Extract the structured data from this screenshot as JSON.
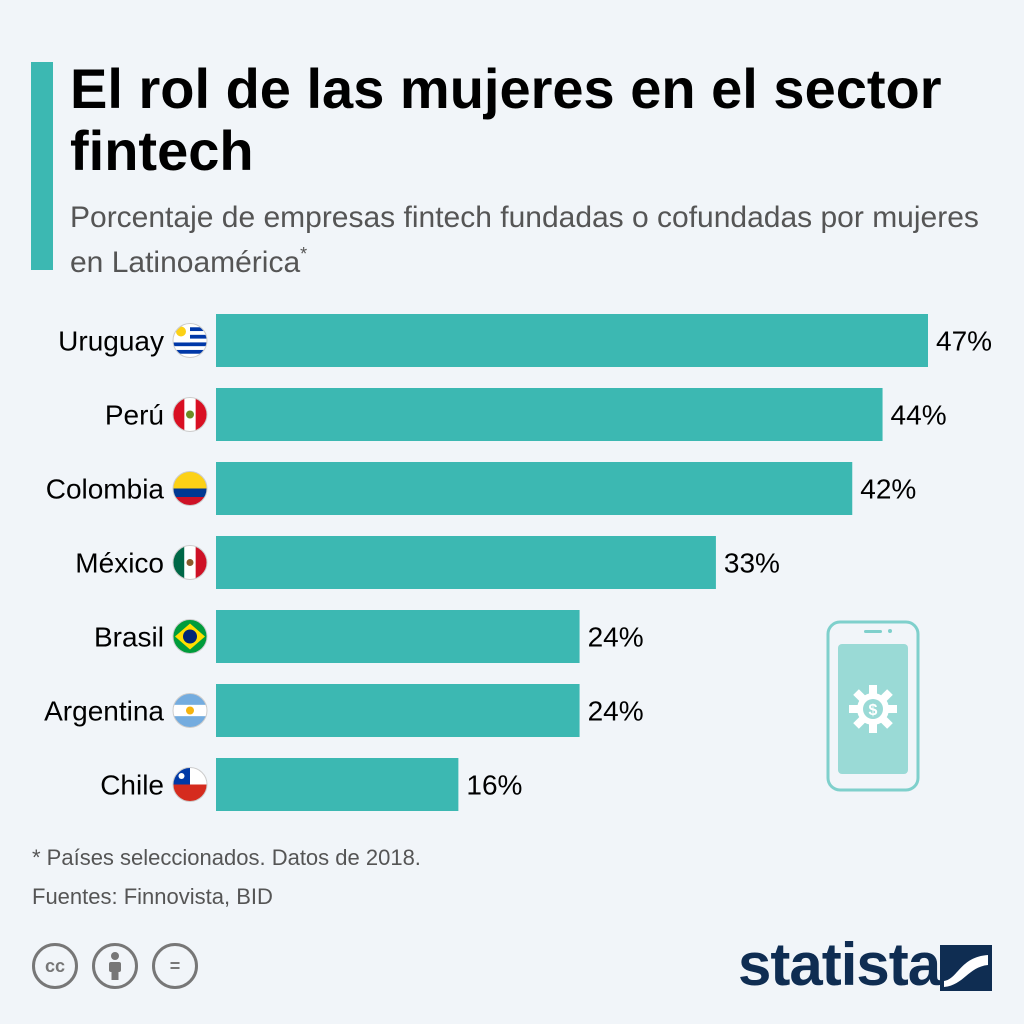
{
  "header": {
    "title": "El rol de las mujeres en el sector fintech",
    "subtitle": "Porcentaje de empresas fintech fundadas o cofundadas por mujeres en Latinoamérica",
    "subtitle_mark": "*"
  },
  "colors": {
    "accent": "#3cb8b2",
    "text": "#000000",
    "muted": "#555555",
    "brand": "#0f2d52"
  },
  "chart_data": {
    "type": "bar",
    "orientation": "horizontal",
    "categories": [
      "Uruguay",
      "Perú",
      "Colombia",
      "México",
      "Brasil",
      "Argentina",
      "Chile"
    ],
    "values": [
      47,
      44,
      42,
      33,
      24,
      24,
      16
    ],
    "value_labels": [
      "47%",
      "44%",
      "42%",
      "33%",
      "24%",
      "24%",
      "16%"
    ],
    "flags": [
      "flag-uruguay",
      "flag-peru",
      "flag-colombia",
      "flag-mexico",
      "flag-brazil",
      "flag-argentina",
      "flag-chile"
    ],
    "xlim": [
      0,
      47
    ],
    "unit": "%",
    "grid": false,
    "legend": "none"
  },
  "footer": {
    "footnote": "* Países seleccionados. Datos de 2018.",
    "sources": "Fuentes: Finnovista, BID",
    "cc_icons": [
      "creative-commons-icon",
      "attribution-icon",
      "no-derivatives-icon"
    ],
    "cc_label": "cc",
    "nd_label": "=",
    "brand": "statista"
  },
  "decor": {
    "phone_icon": "smartphone-dollar-gear-icon"
  }
}
